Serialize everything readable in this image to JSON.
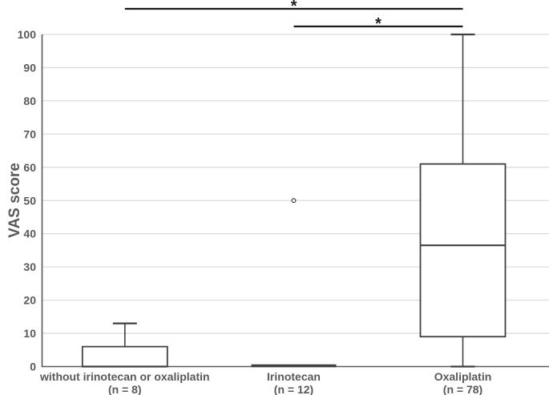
{
  "chart_data": {
    "type": "boxplot",
    "ylabel": "VAS score",
    "ylim": [
      0,
      100
    ],
    "yticks": [
      0,
      10,
      20,
      30,
      40,
      50,
      60,
      70,
      80,
      90,
      100
    ],
    "grid": "horizontal",
    "legend": "none",
    "groups": [
      {
        "label": "without irinotecan or oxaliplatin",
        "sublabel": "(n = 8)",
        "min": 0,
        "q1": 0,
        "median": 0,
        "q3": 6,
        "max": 13,
        "outliers": []
      },
      {
        "label": "Irinotecan",
        "sublabel": "(n = 12)",
        "min": 0,
        "q1": 0,
        "median": 0,
        "q3": 0,
        "max": 0,
        "outliers": [
          50
        ]
      },
      {
        "label": "Oxaliplatin",
        "sublabel": "(n = 78)",
        "min": 0,
        "q1": 9,
        "median": 36.5,
        "q3": 61,
        "max": 100,
        "outliers": []
      }
    ],
    "significance": [
      {
        "from": 0,
        "to": 2,
        "label": "*"
      },
      {
        "from": 1,
        "to": 2,
        "label": "*"
      }
    ]
  },
  "colors": {
    "background": "#ffffff",
    "box_stroke": "#404040",
    "box_fill": "#ffffff",
    "axis": "#595959",
    "gridline": "#dcdcdc",
    "text": "#595959",
    "significance": "#1a1a1a"
  }
}
